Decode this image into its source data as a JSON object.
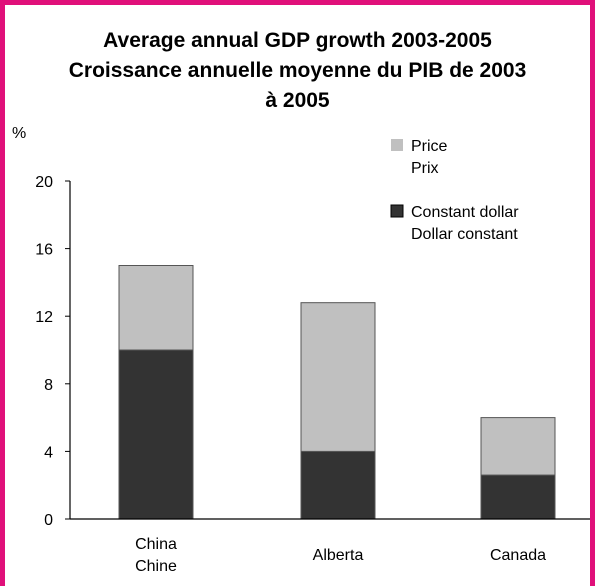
{
  "chart_data": {
    "type": "bar",
    "stacked": true,
    "title_lines": [
      "Average annual GDP growth 2003-2005",
      "Croissance annuelle moyenne du PIB de 2003",
      "à 2005"
    ],
    "ylabel": "%",
    "ylim": [
      0,
      20
    ],
    "yticks": [
      0,
      4,
      8,
      12,
      16,
      20
    ],
    "categories": [
      [
        "China",
        "Chine"
      ],
      [
        "Alberta"
      ],
      [
        "Canada"
      ]
    ],
    "series": [
      {
        "name_lines": [
          "Constant dollar",
          "Dollar constant"
        ],
        "values": [
          10.0,
          4.0,
          2.6
        ],
        "color": "#333333"
      },
      {
        "name_lines": [
          "Price",
          "Prix"
        ],
        "values": [
          5.0,
          8.8,
          3.4
        ],
        "color": "#c0c0c0"
      }
    ],
    "legend_position": "top-right",
    "grid": false
  },
  "colors": {
    "frame": "#e0107a"
  }
}
